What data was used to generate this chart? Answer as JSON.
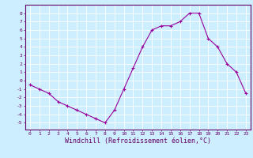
{
  "x": [
    0,
    1,
    2,
    3,
    4,
    5,
    6,
    7,
    8,
    9,
    10,
    11,
    12,
    13,
    14,
    15,
    16,
    17,
    18,
    19,
    20,
    21,
    22,
    23
  ],
  "y": [
    -0.5,
    -1.0,
    -1.5,
    -2.5,
    -3.0,
    -3.5,
    -4.0,
    -4.5,
    -5.0,
    -3.5,
    -1.0,
    1.5,
    4.0,
    6.0,
    6.5,
    6.5,
    7.0,
    8.0,
    8.0,
    5.0,
    4.0,
    2.0,
    1.0,
    -1.5
  ],
  "line_color": "#990099",
  "marker": "+",
  "bg_color": "#cceeff",
  "grid_color": "#ffffff",
  "xlabel": "Windchill (Refroidissement éolien,°C)",
  "xlim_min": -0.5,
  "xlim_max": 23.5,
  "ylim_min": -5.8,
  "ylim_max": 9.0,
  "yticks": [
    -5,
    -4,
    -3,
    -2,
    -1,
    0,
    1,
    2,
    3,
    4,
    5,
    6,
    7,
    8
  ],
  "xticks": [
    0,
    1,
    2,
    3,
    4,
    5,
    6,
    7,
    8,
    9,
    10,
    11,
    12,
    13,
    14,
    15,
    16,
    17,
    18,
    19,
    20,
    21,
    22,
    23
  ],
  "tick_fontsize": 4.5,
  "xlabel_fontsize": 6.0,
  "spine_color": "#660066",
  "line_width": 0.8,
  "marker_size": 2.5
}
